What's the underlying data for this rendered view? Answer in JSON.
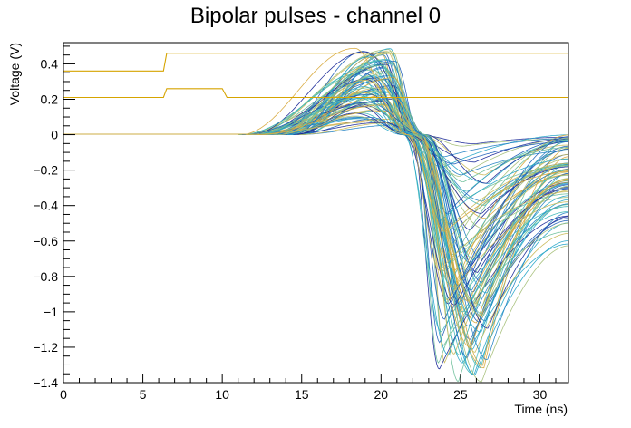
{
  "chart_data": {
    "type": "line",
    "title": "Bipolar pulses - channel 0",
    "xlabel": "Time (ns)",
    "ylabel": "Voltage (V)",
    "xlim": [
      0,
      31.8
    ],
    "ylim": [
      -1.4,
      0.52
    ],
    "x_ticks": [
      0,
      5,
      10,
      15,
      20,
      25,
      30
    ],
    "x_tick_labels": [
      "0",
      "5",
      "10",
      "15",
      "20",
      "25",
      "30"
    ],
    "y_ticks": [
      -1.4,
      -1.2,
      -1,
      -0.8,
      -0.6,
      -0.4,
      -0.2,
      0,
      0.2,
      0.4
    ],
    "y_tick_labels": [
      "−1.4",
      "−1.2",
      "−1",
      "−0.8",
      "−0.6",
      "−0.4",
      "−0.2",
      "0",
      "0.2",
      "0.4"
    ],
    "grid": false,
    "legend": "none",
    "colors": {
      "palette": [
        "#1c2a99",
        "#1f5fb8",
        "#2483c4",
        "#28a6c8",
        "#3fb7b8",
        "#6dbf9a",
        "#a6c07a",
        "#c9b95a",
        "#d7a83a"
      ],
      "reference": "#d6a400"
    },
    "reference_series": [
      {
        "x": [
          0,
          6.3,
          6.5,
          31.8
        ],
        "y": [
          0.36,
          0.36,
          0.46,
          0.46
        ]
      },
      {
        "x": [
          0,
          6.3,
          6.5,
          10.0,
          10.3,
          31.8
        ],
        "y": [
          0.21,
          0.21,
          0.26,
          0.26,
          0.21,
          0.21
        ]
      }
    ],
    "pulse_family": {
      "count": 90,
      "baseline": 0,
      "rise_start_ns": 13,
      "positive_peak_time_ns": [
        18.3,
        21.0
      ],
      "positive_peak_V": [
        0.03,
        0.49
      ],
      "zero_crossing_ns": [
        21.2,
        23.0
      ],
      "negative_peak_time_ns": [
        23.6,
        26.8
      ],
      "negative_peak_V": [
        -0.05,
        -1.4
      ],
      "tail_end_V": [
        -0.6,
        0.0
      ]
    }
  }
}
